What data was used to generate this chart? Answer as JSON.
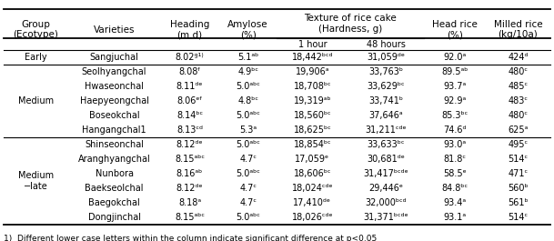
{
  "footnote": "1)  Different lower case letters within the column indicate significant difference at p<0.05",
  "rows": [
    [
      "Early",
      "Sangjuchal",
      "8.02ᵍ¹⁾",
      "5.1ᵃᵇ",
      "18,442ᵇᶜᵈ",
      "31,059ᵈᵉ",
      "92.0ᵃ",
      "424ᵈ"
    ],
    [
      "Medium",
      "Seolhyangchal",
      "8.08ᶠ",
      "4.9ᵇᶜ",
      "19,906ᵃ",
      "33,763ᵇ",
      "89.5ᵃᵇ",
      "480ᶜ"
    ],
    [
      "Medium",
      "Hwaseonchal",
      "8.11ᵈᵉ",
      "5.0ᵃᵇᶜ",
      "18,708ᵇᶜ",
      "33,629ᵇᶜ",
      "93.7ᵃ",
      "485ᶜ"
    ],
    [
      "Medium",
      "Haepyeongchal",
      "8.06ᵉᶠ",
      "4.8ᵇᶜ",
      "19,319ᵃᵇ",
      "33,741ᵇ",
      "92.9ᵃ",
      "483ᶜ"
    ],
    [
      "Medium",
      "Boseokchal",
      "8.14ᵇᶜ",
      "5.0ᵃᵇᶜ",
      "18,560ᵇᶜ",
      "37,646ᵃ",
      "85.3ᵇᶜ",
      "480ᶜ"
    ],
    [
      "Medium",
      "Hangangchal1",
      "8.13ᶜᵈ",
      "5.3ᵃ",
      "18,625ᵇᶜ",
      "31,211ᶜᵈᵉ",
      "74.6ᵈ",
      "625ᵃ"
    ],
    [
      "Medium-late",
      "Shinseonchal",
      "8.12ᵈᵉ",
      "5.0ᵃᵇᶜ",
      "18,854ᵇᶜ",
      "33,633ᵇᶜ",
      "93.0ᵃ",
      "495ᶜ"
    ],
    [
      "Medium-late",
      "Aranghyangchal",
      "8.15ᵃᵇᶜ",
      "4.7ᶜ",
      "17,059ᵉ",
      "30,681ᵈᵉ",
      "81.8ᶜ",
      "514ᶜ"
    ],
    [
      "Medium-late",
      "Nunbora",
      "8.16ᵃᵇ",
      "5.0ᵃᵇᶜ",
      "18,606ᵇᶜ",
      "31,417ᵇᶜᵈᵉ",
      "58.5ᵉ",
      "471ᶜ"
    ],
    [
      "Medium-late",
      "Baekseolchal",
      "8.12ᵈᵉ",
      "4.7ᶜ",
      "18,024ᶜᵈᵉ",
      "29,446ᵉ",
      "84.8ᵇᶜ",
      "560ᵇ"
    ],
    [
      "Medium-late",
      "Baegokchal",
      "8.18ᵃ",
      "4.7ᶜ",
      "17,410ᵈᵉ",
      "32,000ᵇᶜᵈ",
      "93.4ᵃ",
      "561ᵇ"
    ],
    [
      "Medium-late",
      "Dongjinchal",
      "8.15ᵃᵇᶜ",
      "5.0ᵃᵇᶜ",
      "18,026ᶜᵈᵉ",
      "31,371ᵇᶜᵈᵉ",
      "93.1ᵃ",
      "514ᶜ"
    ]
  ],
  "bg_color": "#ffffff",
  "text_color": "#000000",
  "line_color": "#000000",
  "font_size": 7.0,
  "header_font_size": 7.5
}
